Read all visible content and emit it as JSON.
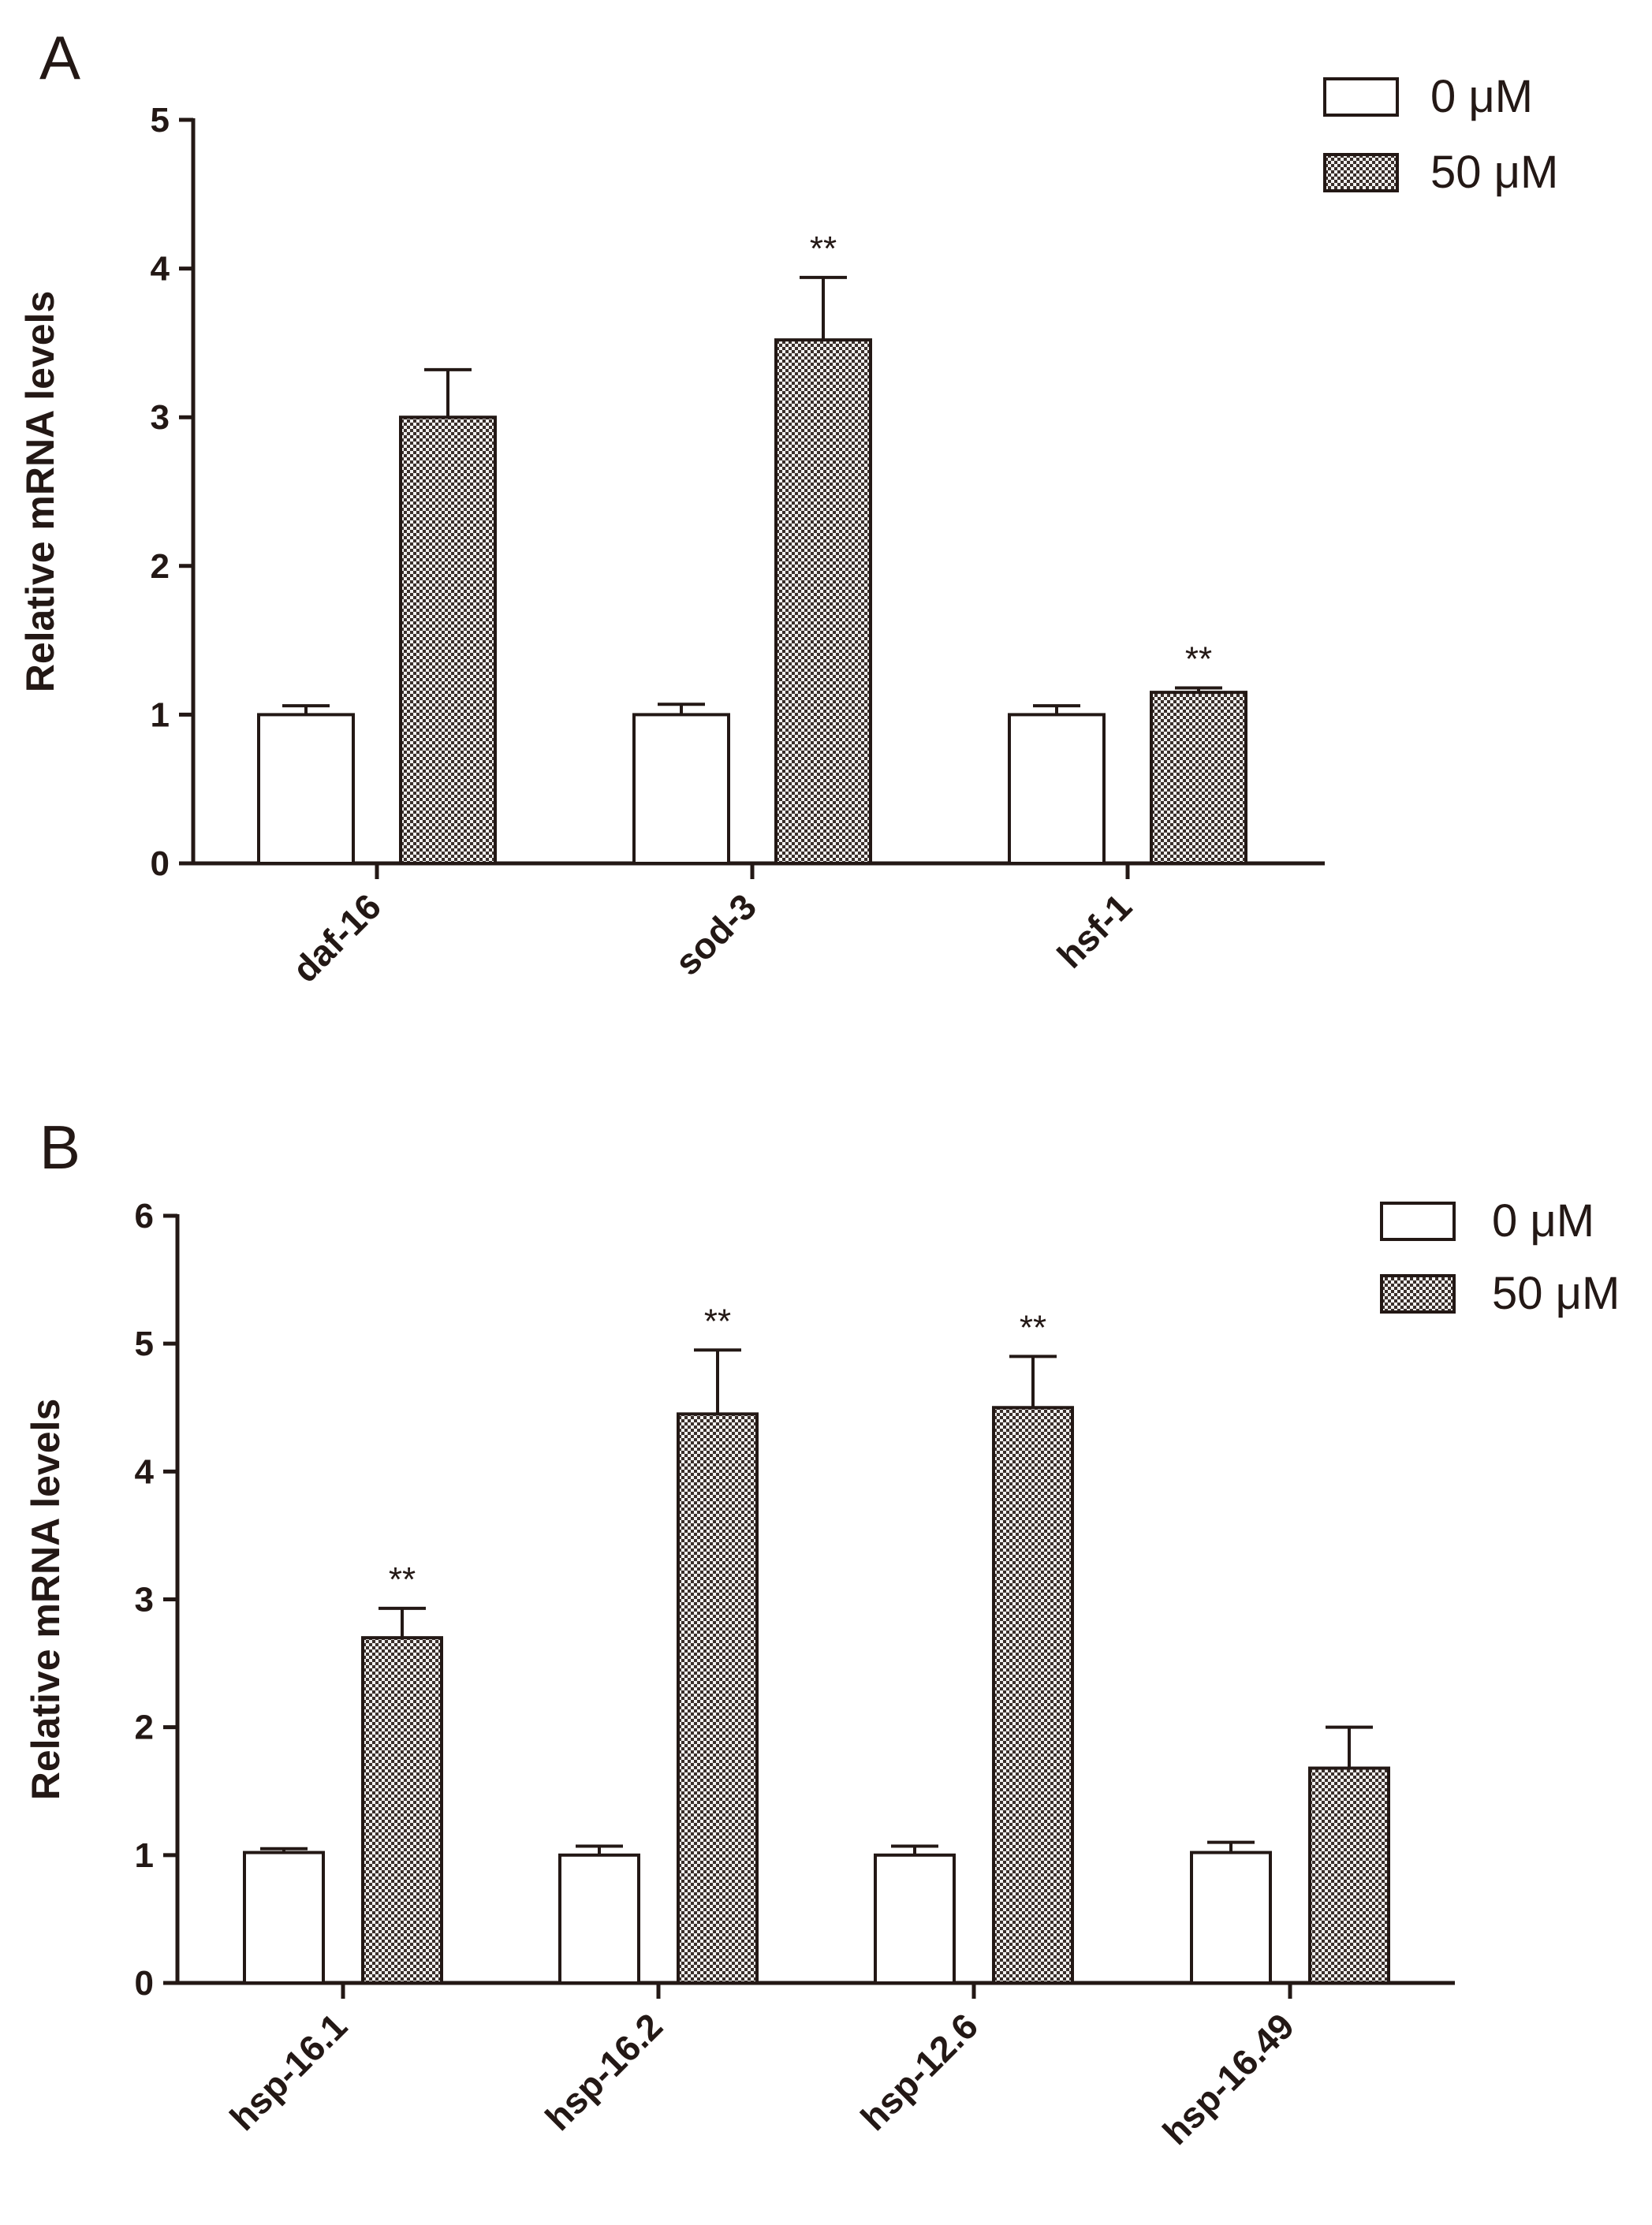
{
  "chart_data": [
    {
      "panel": "A",
      "type": "bar",
      "ylabel": "Relative mRNA levels",
      "ylim": [
        0,
        5
      ],
      "yticks": [
        0,
        1,
        2,
        3,
        4,
        5
      ],
      "categories": [
        "daf-16",
        "sod-3",
        "hsf-1"
      ],
      "series": [
        {
          "name": "0 μM",
          "pattern": "white",
          "values": [
            1.0,
            1.0,
            1.0
          ],
          "errors": [
            0.06,
            0.07,
            0.06
          ]
        },
        {
          "name": "50 μM",
          "pattern": "checker",
          "values": [
            3.0,
            3.52,
            1.15
          ],
          "errors": [
            0.32,
            0.42,
            0.03
          ]
        }
      ],
      "significance": [
        [
          "",
          ""
        ],
        [
          "",
          "**"
        ],
        [
          "",
          "**"
        ]
      ],
      "legend": "top-right"
    },
    {
      "panel": "B",
      "type": "bar",
      "ylabel": "Relative mRNA levels",
      "ylim": [
        0,
        6
      ],
      "yticks": [
        0,
        1,
        2,
        3,
        4,
        5,
        6
      ],
      "categories": [
        "hsp-16.1",
        "hsp-16.2",
        "hsp-12.6",
        "hsp-16.49"
      ],
      "series": [
        {
          "name": "0 μM",
          "pattern": "white",
          "values": [
            1.02,
            1.0,
            1.0,
            1.02
          ],
          "errors": [
            0.03,
            0.07,
            0.07,
            0.08
          ]
        },
        {
          "name": "50 μM",
          "pattern": "checker",
          "values": [
            2.7,
            4.45,
            4.5,
            1.68
          ],
          "errors": [
            0.23,
            0.5,
            0.4,
            0.32
          ]
        }
      ],
      "significance": [
        [
          "",
          "**"
        ],
        [
          "",
          "**"
        ],
        [
          "",
          "**"
        ],
        [
          "",
          ""
        ]
      ],
      "legend": "top-right"
    }
  ]
}
